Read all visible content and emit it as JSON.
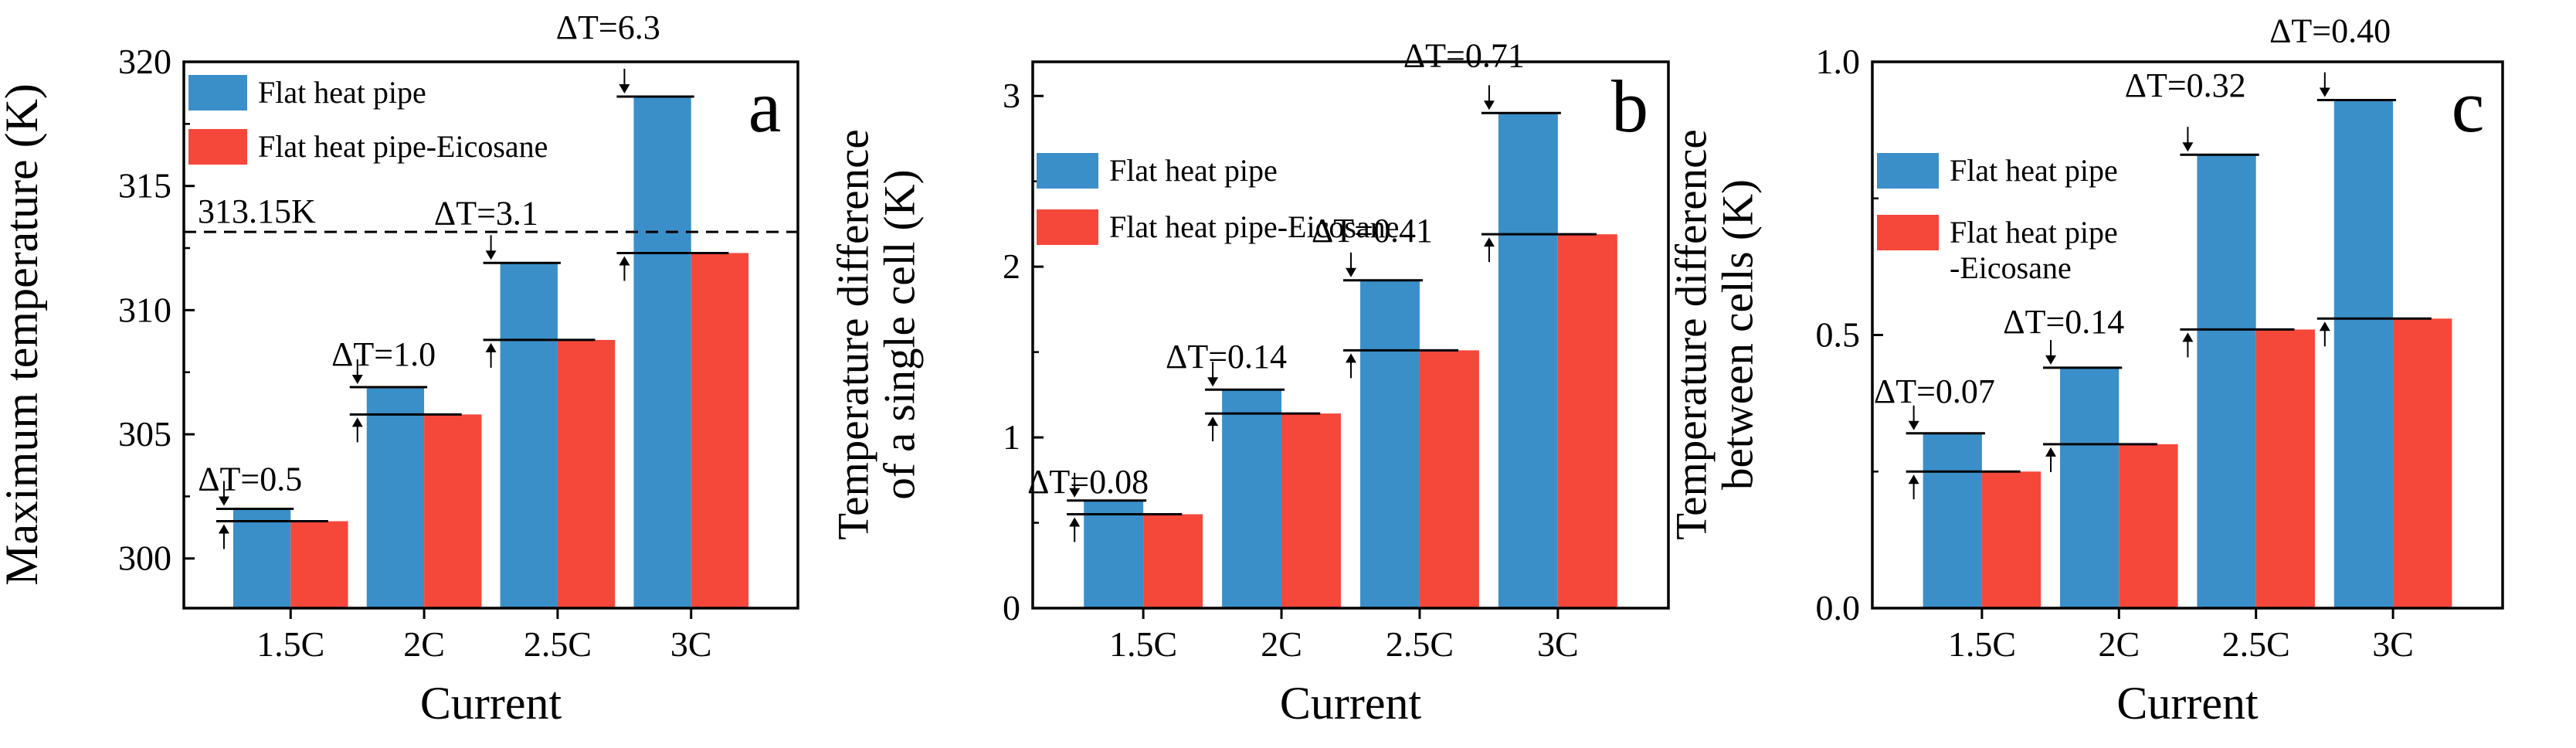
{
  "colors": {
    "series1": "#3a8fc9",
    "series2": "#f5473a",
    "axis": "#000000"
  },
  "chart_data": [
    {
      "type": "bar",
      "panel_label": "a",
      "title": "",
      "xlabel": "Current",
      "ylabel": "Maximum temperature (K)",
      "ylabel_lines": [
        "Maximum temperature (K)"
      ],
      "categories": [
        "1.5C",
        "2C",
        "2.5C",
        "3C"
      ],
      "ylim": [
        298,
        320
      ],
      "yticks": [
        300,
        305,
        310,
        315,
        320
      ],
      "ytick_labels": [
        "300",
        "305",
        "310",
        "315",
        "320"
      ],
      "series": [
        {
          "name": "Flat heat pipe",
          "values": [
            302.0,
            306.9,
            311.9,
            318.6
          ]
        },
        {
          "name": "Flat heat pipe-Eicosane",
          "values": [
            301.5,
            305.8,
            308.8,
            312.3
          ]
        }
      ],
      "legend": {
        "position": "top-left",
        "entries": [
          [
            "Flat heat pipe"
          ],
          [
            "Flat heat pipe-Eicosane"
          ]
        ]
      },
      "annotations": [
        "ΔT=0.5",
        "ΔT=1.0",
        "ΔT=3.1",
        "ΔT=6.3"
      ],
      "reference_line": {
        "value": 313.15,
        "label": "313.15K"
      }
    },
    {
      "type": "bar",
      "panel_label": "b",
      "title": "",
      "xlabel": "Current",
      "ylabel": "Temperature difference of a single cell (K)",
      "ylabel_lines": [
        "Temperature difference",
        "of a single cell (K)"
      ],
      "categories": [
        "1.5C",
        "2C",
        "2.5C",
        "3C"
      ],
      "ylim": [
        0,
        3.2
      ],
      "yticks": [
        0,
        1,
        2,
        3
      ],
      "ytick_labels": [
        "0",
        "1",
        "2",
        "3"
      ],
      "series": [
        {
          "name": "Flat heat pipe",
          "values": [
            0.63,
            1.28,
            1.92,
            2.9
          ]
        },
        {
          "name": "Flat heat pipe-Eicosane",
          "values": [
            0.55,
            1.14,
            1.51,
            2.19
          ]
        }
      ],
      "legend": {
        "position": "upper-left",
        "entries": [
          [
            "Flat heat pipe"
          ],
          [
            "Flat heat pipe-Eicosane"
          ]
        ]
      },
      "annotations": [
        "ΔT=0.08",
        "ΔT=0.14",
        "ΔT=0.41",
        "ΔT=0.71"
      ]
    },
    {
      "type": "bar",
      "panel_label": "c",
      "title": "",
      "xlabel": "Current",
      "ylabel": "Temperature difference between cells (K)",
      "ylabel_lines": [
        "Temperature difference",
        "between cells (K)"
      ],
      "categories": [
        "1.5C",
        "2C",
        "2.5C",
        "3C"
      ],
      "ylim": [
        0,
        1.0
      ],
      "yticks": [
        0,
        0.5,
        1.0
      ],
      "ytick_labels": [
        "0.0",
        "0.5",
        "1.0"
      ],
      "series": [
        {
          "name": "Flat heat pipe",
          "values": [
            0.32,
            0.44,
            0.83,
            0.93
          ]
        },
        {
          "name": "Flat heat pipe-Eicosane",
          "values": [
            0.25,
            0.3,
            0.51,
            0.53
          ]
        }
      ],
      "legend": {
        "position": "upper-left",
        "entries": [
          [
            "Flat heat pipe"
          ],
          [
            "Flat heat pipe",
            "-Eicosane"
          ]
        ]
      },
      "annotations": [
        "ΔT=0.07",
        "ΔT=0.14",
        "ΔT=0.32",
        "ΔT=0.40"
      ]
    }
  ]
}
